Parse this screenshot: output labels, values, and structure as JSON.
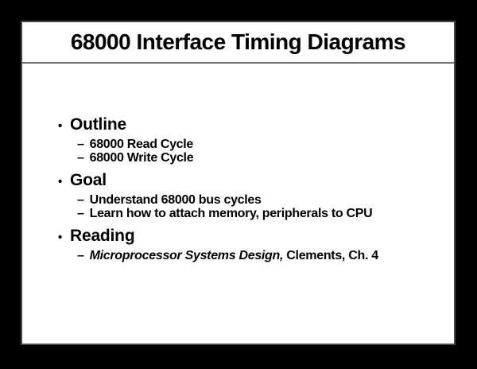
{
  "slide": {
    "title": "68000 Interface Timing Diagrams",
    "markers": {
      "level1": "•",
      "level2": "–"
    },
    "sections": [
      {
        "heading": "Outline",
        "items": [
          {
            "segments": [
              {
                "text": "68000 Read Cycle",
                "italic": false
              }
            ]
          },
          {
            "segments": [
              {
                "text": "68000 Write Cycle",
                "italic": false
              }
            ]
          }
        ]
      },
      {
        "heading": "Goal",
        "items": [
          {
            "segments": [
              {
                "text": "Understand 68000 bus cycles",
                "italic": false
              }
            ]
          },
          {
            "segments": [
              {
                "text": "Learn how to attach memory, peripherals to CPU",
                "italic": false
              }
            ]
          }
        ]
      },
      {
        "heading": "Reading",
        "items": [
          {
            "segments": [
              {
                "text": "Microprocessor Systems Design,",
                "italic": true
              },
              {
                "text": " Clements, Ch. 4",
                "italic": false
              }
            ]
          }
        ]
      }
    ],
    "colors": {
      "page_background": "#000000",
      "slide_background": "#ffffff",
      "text": "#000000",
      "slide_border": "#484848",
      "title_divider": "#6e6e6e"
    }
  }
}
